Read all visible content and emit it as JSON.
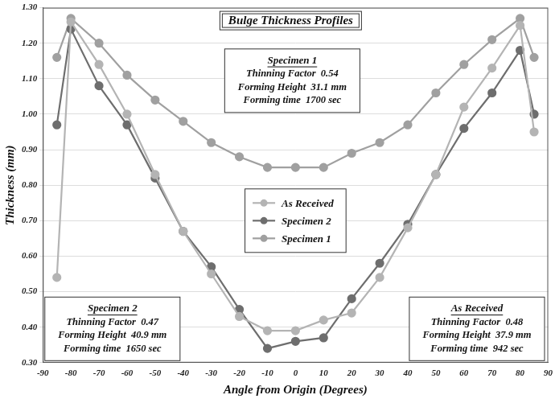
{
  "chart_data": {
    "type": "line",
    "title": "Bulge Thickness Profiles",
    "x_label": "Angle from Origin (Degrees)",
    "y_label": "Thickness (mm)",
    "x": [
      -85,
      -80,
      -70,
      -60,
      -50,
      -40,
      -30,
      -20,
      -10,
      0,
      10,
      20,
      30,
      40,
      50,
      60,
      70,
      80,
      85
    ],
    "series": [
      {
        "name": "As Received",
        "color": "#b4b4b4",
        "values": [
          0.54,
          1.26,
          1.14,
          1.0,
          0.83,
          0.67,
          0.55,
          0.43,
          0.39,
          0.39,
          0.42,
          0.44,
          0.54,
          0.68,
          0.83,
          1.02,
          1.13,
          1.25,
          0.95
        ]
      },
      {
        "name": "Specimen 2",
        "color": "#6e6e6e",
        "values": [
          0.97,
          1.24,
          1.08,
          0.97,
          0.82,
          0.67,
          0.57,
          0.45,
          0.34,
          0.36,
          0.37,
          0.48,
          0.58,
          0.69,
          0.83,
          0.96,
          1.06,
          1.18,
          1.0
        ]
      },
      {
        "name": "Specimen 1",
        "color": "#a0a0a0",
        "values": [
          1.16,
          1.27,
          1.2,
          1.11,
          1.04,
          0.98,
          0.92,
          0.88,
          0.85,
          0.85,
          0.85,
          0.89,
          0.92,
          0.97,
          1.06,
          1.14,
          1.21,
          1.27,
          1.16
        ]
      }
    ],
    "xlim": [
      -90,
      90
    ],
    "xticks": [
      -90,
      -80,
      -70,
      -60,
      -50,
      -40,
      -30,
      -20,
      -10,
      0,
      10,
      20,
      30,
      40,
      50,
      60,
      70,
      80,
      90
    ],
    "ylim": [
      0.3,
      1.3
    ],
    "yticks": [
      {
        "value": 0.3,
        "label": "0.30"
      },
      {
        "value": 0.4,
        "label": "0.40"
      },
      {
        "value": 0.5,
        "label": "0.50"
      },
      {
        "value": 0.6,
        "label": "0.60"
      },
      {
        "value": 0.7,
        "label": "0.70"
      },
      {
        "value": 0.8,
        "label": "0.80"
      },
      {
        "value": 0.9,
        "label": "0.90"
      },
      {
        "value": 1.0,
        "label": "1.00"
      },
      {
        "value": 1.1,
        "label": "1.10"
      },
      {
        "value": 1.2,
        "label": "1.20"
      },
      {
        "value": 1.3,
        "label": "1.30"
      }
    ],
    "grid": "y",
    "legend": "center",
    "marker": "circle",
    "line_style": "solid",
    "annotations": [
      {
        "title": "Specimen 1",
        "lines": [
          "Thinning Factor  0.54",
          "Forming Height  31.1 mm",
          "Forming time  1700 sec"
        ]
      },
      {
        "title": "Specimen 2",
        "lines": [
          "Thinning Factor  0.47",
          "Forming Height  40.9 mm",
          "Forming time  1650 sec"
        ]
      },
      {
        "title": "As Received",
        "lines": [
          "Thinning Factor  0.48",
          "Forming Height  37.9 mm",
          "Forming time  942 sec"
        ]
      }
    ]
  }
}
